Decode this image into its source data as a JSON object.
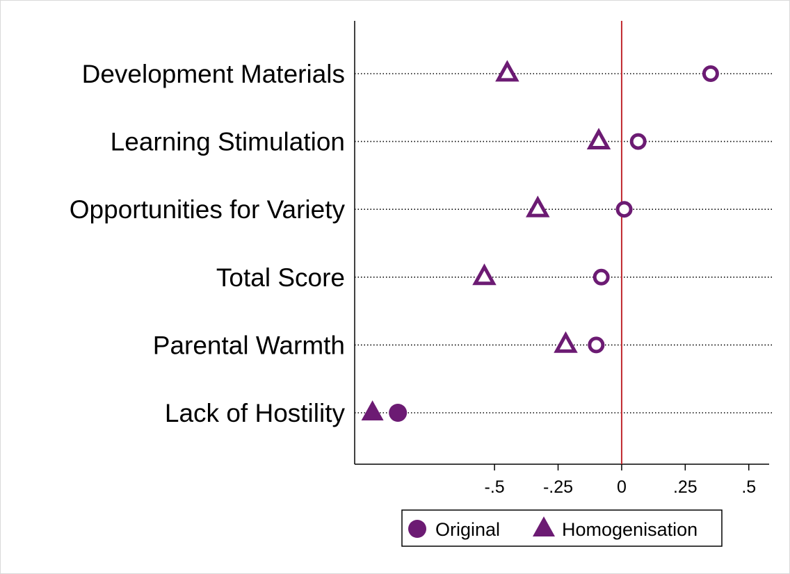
{
  "chart_data": {
    "type": "scatter",
    "orientation": "horizontal-dot-plot",
    "categories": [
      "Development Materials",
      "Learning Stimulation",
      "Opportunities for Variety",
      "Total Score",
      "Parental Warmth",
      "Lack of Hostility"
    ],
    "series": [
      {
        "name": "Original",
        "marker": "circle",
        "values": [
          0.35,
          0.065,
          0.01,
          -0.08,
          -0.1,
          -0.88
        ],
        "filled": [
          false,
          false,
          false,
          false,
          false,
          true
        ]
      },
      {
        "name": "Homogenisation",
        "marker": "triangle",
        "values": [
          -0.45,
          -0.09,
          -0.33,
          -0.54,
          -0.22,
          -0.98
        ],
        "filled": [
          false,
          false,
          false,
          false,
          false,
          true
        ]
      }
    ],
    "xticks": [
      {
        "value": -0.5,
        "label": "-.5"
      },
      {
        "value": -0.25,
        "label": "-.25"
      },
      {
        "value": 0,
        "label": "0"
      },
      {
        "value": 0.25,
        "label": ".25"
      },
      {
        "value": 0.5,
        "label": ".5"
      }
    ],
    "xlim": [
      -1.05,
      0.58
    ],
    "reference_line": {
      "value": 0,
      "color": "#c0282d"
    },
    "gridlines": "dotted, one per category",
    "legend_position": "bottom-center",
    "colors": {
      "marker": "#6c1b73",
      "reference": "#c0282d",
      "axis": "#000000",
      "grid": "#000000"
    },
    "title": "",
    "xlabel": "",
    "ylabel": ""
  }
}
